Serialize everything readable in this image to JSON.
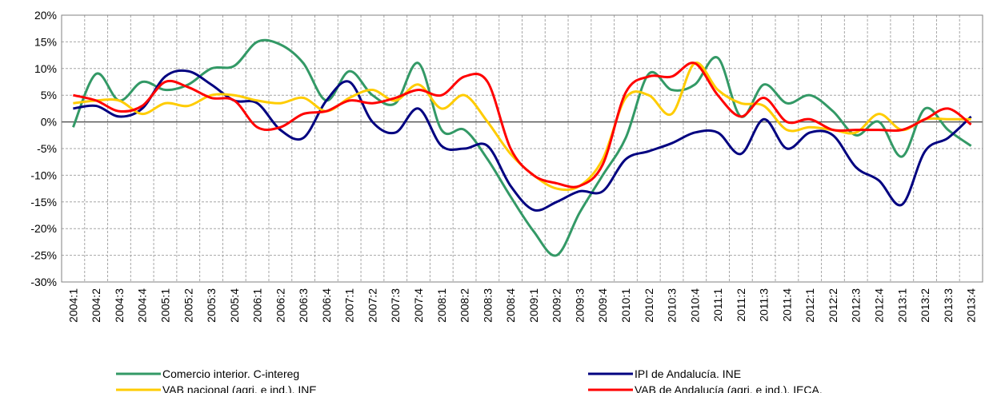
{
  "chart_data": {
    "type": "line",
    "categories": [
      "2004:1",
      "2004:2",
      "2004:3",
      "2004:4",
      "2005:1",
      "2005:2",
      "2005:3",
      "2005:4",
      "2006:1",
      "2006:2",
      "2006:3",
      "2006:4",
      "2007:1",
      "2007:2",
      "2007:3",
      "2007:4",
      "2008:1",
      "2008:2",
      "2008:3",
      "2008:4",
      "2009:1",
      "2009:2",
      "2009:3",
      "2009:4",
      "2010:1",
      "2010:2",
      "2010:3",
      "2010:4",
      "2011:1",
      "2011:2",
      "2011:3",
      "2011:4",
      "2012:1",
      "2012:2",
      "2012:3",
      "2012:4",
      "2013:1",
      "2013:2",
      "2013:3",
      "2013:4"
    ],
    "series": [
      {
        "name": "Comercio interior. C-intereg",
        "color": "#339966",
        "values": [
          -1,
          9,
          4,
          7.5,
          6,
          7,
          10,
          10.5,
          15,
          14.5,
          11,
          4,
          9.5,
          5,
          3.5,
          11,
          -1.5,
          -1.5,
          -7,
          -14,
          -20.5,
          -25,
          -17,
          -10,
          -3,
          9,
          6,
          7,
          12,
          1,
          7,
          3.5,
          5,
          2,
          -2.5,
          0,
          -6.5,
          2.5,
          -1.5,
          -4.5
        ]
      },
      {
        "name": "IPI de Andalucía. INE",
        "color": "#000080",
        "values": [
          2.5,
          3,
          1,
          2.5,
          8.5,
          9.5,
          7,
          4,
          3.5,
          -1.5,
          -3,
          4,
          7.5,
          0,
          -2,
          2.5,
          -4.5,
          -5,
          -4.5,
          -12,
          -16.5,
          -15,
          -13,
          -13,
          -7,
          -5.5,
          -4,
          -2,
          -2,
          -6,
          0.5,
          -5,
          -2,
          -2.5,
          -8.5,
          -11,
          -15.5,
          -5.5,
          -3,
          1
        ]
      },
      {
        "name": "VAB nacional (agri. e ind.). INE",
        "color": "#ffcc00",
        "values": [
          3.5,
          4,
          4,
          1.5,
          3.5,
          3,
          5,
          5,
          4,
          3.5,
          4.5,
          2,
          4.5,
          6,
          4,
          7,
          2.5,
          5,
          0,
          -6,
          -10,
          -12.5,
          -12,
          -7,
          4.5,
          5,
          1.5,
          11,
          6,
          3.5,
          3,
          -1.5,
          -1,
          -1.5,
          -2,
          1.5,
          -1.5,
          0.5,
          0.5,
          0.5
        ]
      },
      {
        "name": "VAB de Andalucía (agri. e ind.). IECA.",
        "color": "#ff0000",
        "values": [
          5,
          4,
          2,
          3,
          7.5,
          6.5,
          4.5,
          4,
          -1,
          -1,
          1.5,
          2,
          4,
          3.5,
          4.5,
          6,
          5,
          8.5,
          7.5,
          -5,
          -10,
          -11.5,
          -12,
          -8,
          5.5,
          8.5,
          8.5,
          11,
          5,
          1,
          4.5,
          0,
          0.5,
          -1.5,
          -1.5,
          -1.5,
          -1.5,
          0.5,
          2.5,
          -0.5
        ]
      }
    ],
    "ylim": [
      -30,
      20
    ],
    "yticks": [
      {
        "value": -30,
        "label": "-30%"
      },
      {
        "value": -25,
        "label": "-25%"
      },
      {
        "value": -20,
        "label": "-20%"
      },
      {
        "value": -15,
        "label": "-15%"
      },
      {
        "value": -10,
        "label": "-10%"
      },
      {
        "value": -5,
        "label": "-5%"
      },
      {
        "value": 0,
        "label": "0%"
      },
      {
        "value": 5,
        "label": "5%"
      },
      {
        "value": 10,
        "label": "10%"
      },
      {
        "value": 15,
        "label": "15%"
      },
      {
        "value": 20,
        "label": "20%"
      }
    ],
    "grid": true
  }
}
